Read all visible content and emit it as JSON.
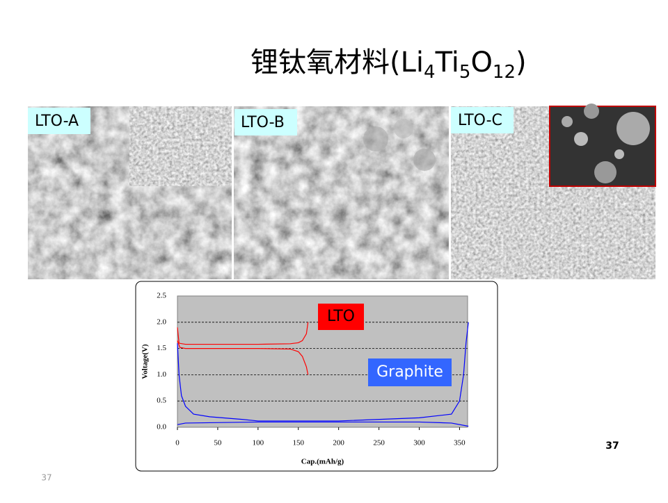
{
  "title_parts": [
    "锂钛氧材料(Li",
    "4",
    "Ti",
    "5",
    "O",
    "12",
    ")"
  ],
  "images": [
    {
      "label": "LTO-A"
    },
    {
      "label": "LTO-B"
    },
    {
      "label": "LTO-C"
    }
  ],
  "page_number": "37",
  "slide_number": "37",
  "chart_data": {
    "type": "line",
    "x_label": "Cap.(mAh/g)",
    "y_label": "Voltage(V)",
    "xlim": [
      0,
      360
    ],
    "xticks": [
      0,
      50,
      100,
      150,
      200,
      250,
      300,
      350
    ],
    "ylim": [
      0,
      2.5
    ],
    "yticks": [
      {
        "value": 0,
        "label": "0.0"
      },
      0.5,
      {
        "value": 1,
        "label": "1.0"
      },
      1.5,
      {
        "value": 2,
        "label": "2.0"
      },
      2.5
    ],
    "grid": true,
    "plot_background": "#c0c0c0",
    "annotations": [
      {
        "text": "LTO",
        "background": "#ff0000",
        "color": "#000000"
      },
      {
        "text": "Graphite",
        "background": "#3366ff",
        "color": "#ffffff"
      }
    ],
    "series": [
      {
        "color": "#ff0000",
        "x": [
          0,
          2,
          10,
          50,
          100,
          140,
          150,
          155,
          160,
          162
        ],
        "values": [
          1.9,
          1.6,
          1.58,
          1.58,
          1.58,
          1.59,
          1.61,
          1.65,
          1.78,
          2.0
        ]
      },
      {
        "color": "#ff0000",
        "x": [
          0,
          3,
          10,
          50,
          100,
          140,
          150,
          155,
          160,
          162
        ],
        "values": [
          1.65,
          1.52,
          1.5,
          1.5,
          1.5,
          1.49,
          1.44,
          1.35,
          1.15,
          1.0
        ]
      },
      {
        "color": "#0000ff",
        "x": [
          0,
          2,
          5,
          10,
          20,
          40,
          80,
          100,
          200,
          300,
          340,
          350,
          355,
          358,
          361
        ],
        "values": [
          1.6,
          1.0,
          0.6,
          0.4,
          0.25,
          0.2,
          0.15,
          0.12,
          0.12,
          0.18,
          0.25,
          0.5,
          1.0,
          1.6,
          2.0
        ]
      },
      {
        "color": "#0000ff",
        "x": [
          0,
          10,
          100,
          200,
          300,
          340,
          361
        ],
        "values": [
          0.05,
          0.08,
          0.1,
          0.1,
          0.1,
          0.08,
          0.02
        ]
      }
    ]
  }
}
